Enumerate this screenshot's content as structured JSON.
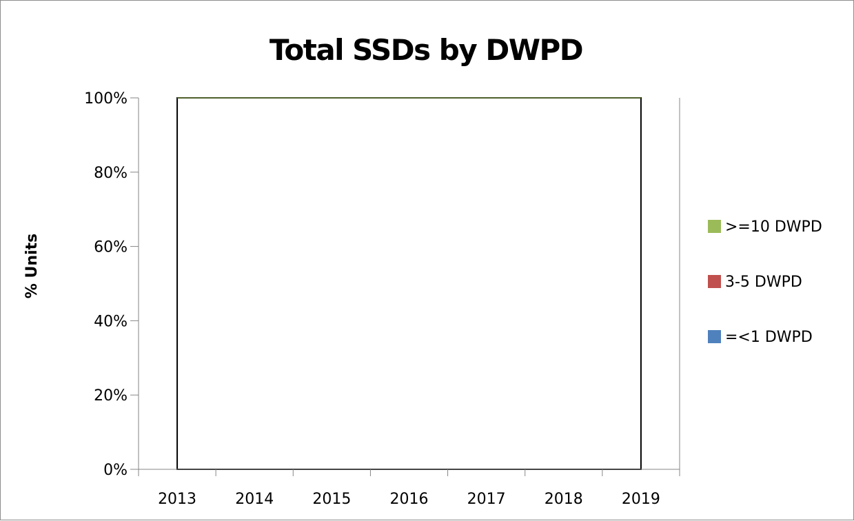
{
  "chart_data": {
    "type": "area",
    "title": "Total SSDs by DWPD",
    "ylabel": "% Units",
    "xlabel": "",
    "categories": [
      "2013",
      "2014",
      "2015",
      "2016",
      "2017",
      "2018",
      "2019"
    ],
    "yticks": [
      "0%",
      "20%",
      "40%",
      "60%",
      "80%",
      "100%"
    ],
    "ylim": [
      0,
      100
    ],
    "grid": false,
    "legend": "right",
    "series": [
      {
        "name": "=<1 DWPD",
        "color": "#4F81BD",
        "values": [
          0,
          0,
          0,
          0,
          0,
          0,
          0
        ]
      },
      {
        "name": "3-5 DWPD",
        "color": "#C0504D",
        "values": [
          0,
          0,
          0,
          0,
          0,
          0,
          0
        ]
      },
      {
        "name": ">=10 DWPD",
        "color": "#9BBB59",
        "values": [
          100,
          100,
          100,
          100,
          100,
          100,
          100
        ]
      }
    ]
  }
}
